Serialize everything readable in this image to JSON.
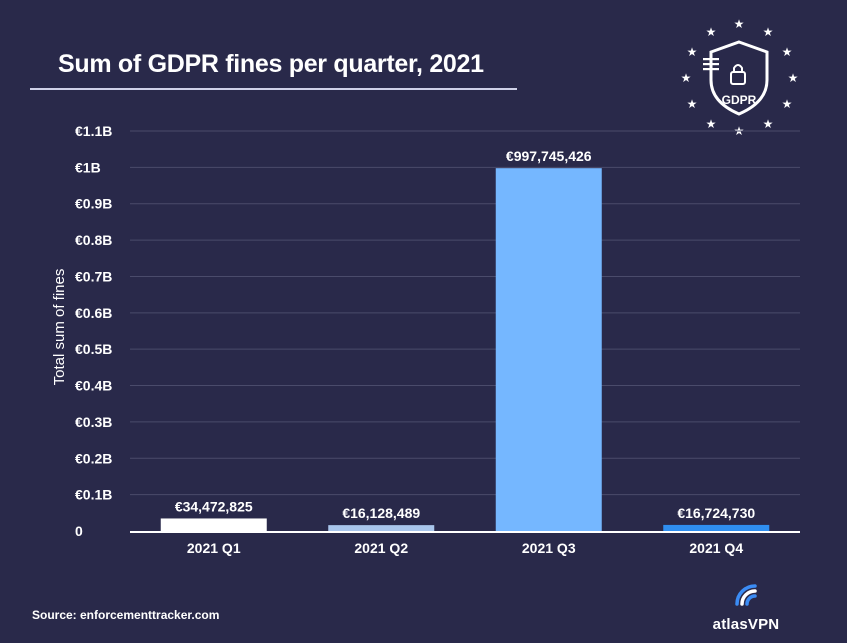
{
  "title": "Sum of GDPR fines per quarter, 2021",
  "logo": {
    "text": "GDPR",
    "icon": "gdpr-shield-with-eu-stars"
  },
  "source": "Source: enforcementtracker.com",
  "brand": {
    "name": "atlasVPN",
    "icon": "atlasvpn-signal-icon"
  },
  "colors": {
    "background": "#29294a",
    "grid": "#4a4b6b",
    "axis": "#ffffff",
    "bars": [
      "#ffffff",
      "#a9c6ec",
      "#75b7ff",
      "#2f8ef0"
    ]
  },
  "chart_data": {
    "type": "bar",
    "title": "Sum of GDPR fines per quarter, 2021",
    "xlabel": "",
    "ylabel": "Total sum of fines",
    "categories": [
      "2021 Q1",
      "2021 Q2",
      "2021 Q3",
      "2021 Q4"
    ],
    "values": [
      34472825,
      16128489,
      997745426,
      16724730
    ],
    "value_labels": [
      "€34,472,825",
      "€16,128,489",
      "€997,745,426",
      "€16,724,730"
    ],
    "ylim": [
      0,
      1100000000
    ],
    "yticks": [
      0,
      100000000,
      200000000,
      300000000,
      400000000,
      500000000,
      600000000,
      700000000,
      800000000,
      900000000,
      1000000000,
      1100000000
    ],
    "ytick_labels": [
      "0",
      "€0.1B",
      "€0.2B",
      "€0.3B",
      "€0.4B",
      "€0.5B",
      "€0.6B",
      "€0.7B",
      "€0.8B",
      "€0.9B",
      "€1B",
      "€1.1B"
    ],
    "grid": true,
    "legend": "none"
  }
}
